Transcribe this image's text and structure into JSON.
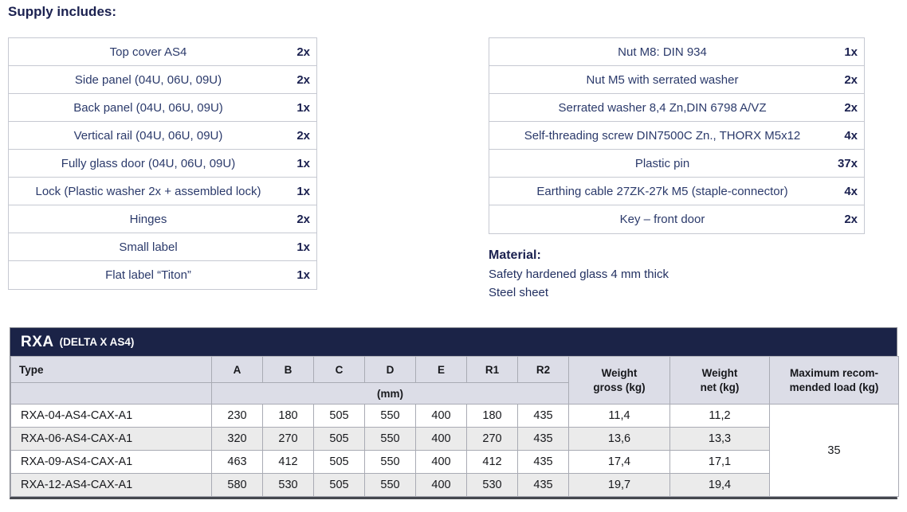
{
  "supply": {
    "heading": "Supply includes:"
  },
  "supply_left": [
    {
      "item": "Top cover AS4",
      "qty": "2x"
    },
    {
      "item": "Side panel (04U, 06U, 09U)",
      "qty": "2x"
    },
    {
      "item": "Back panel (04U, 06U, 09U)",
      "qty": "1x"
    },
    {
      "item": "Vertical rail (04U, 06U, 09U)",
      "qty": "2x"
    },
    {
      "item": "Fully glass door (04U, 06U, 09U)",
      "qty": "1x"
    },
    {
      "item": "Lock (Plastic washer 2x + assembled lock)",
      "qty": "1x"
    },
    {
      "item": "Hinges",
      "qty": "2x"
    },
    {
      "item": "Small label",
      "qty": "1x"
    },
    {
      "item": "Flat label “Titon”",
      "qty": "1x"
    }
  ],
  "supply_right": [
    {
      "item": "Nut M8: DIN 934",
      "qty": "1x"
    },
    {
      "item": "Nut M5 with serrated washer",
      "qty": "2x"
    },
    {
      "item": "Serrated washer 8,4 Zn,DIN 6798 A/VZ",
      "qty": "2x"
    },
    {
      "item": "Self-threading screw DIN7500C Zn., THORX M5x12",
      "qty": "4x"
    },
    {
      "item": "Plastic pin",
      "qty": "37x"
    },
    {
      "item": "Earthing cable 27ZK-27k M5 (staple-connector)",
      "qty": "4x"
    },
    {
      "item": "Key – front door",
      "qty": "2x"
    }
  ],
  "material": {
    "heading": "Material:",
    "lines": [
      "Safety hardened glass 4 mm thick",
      "Steel sheet"
    ]
  },
  "spec": {
    "title": "RXA",
    "subtitle": "(DELTA X AS4)",
    "col_type": "Type",
    "dim_columns": [
      "A",
      "B",
      "C",
      "D",
      "E",
      "R1",
      "R2"
    ],
    "dim_unit": "(mm)",
    "col_weight_gross": "Weight\ngross (kg)",
    "col_weight_net": "Weight\nnet (kg)",
    "col_max_load": "Maximum recom-\nmended load (kg)",
    "rows": [
      {
        "type": "RXA-04-AS4-CAX-A1",
        "dims": [
          "230",
          "180",
          "505",
          "550",
          "400",
          "180",
          "435"
        ],
        "weight_gross": "11,4",
        "weight_net": "11,2"
      },
      {
        "type": "RXA-06-AS4-CAX-A1",
        "dims": [
          "320",
          "270",
          "505",
          "550",
          "400",
          "270",
          "435"
        ],
        "weight_gross": "13,6",
        "weight_net": "13,3"
      },
      {
        "type": "RXA-09-AS4-CAX-A1",
        "dims": [
          "463",
          "412",
          "505",
          "550",
          "400",
          "412",
          "435"
        ],
        "weight_gross": "17,4",
        "weight_net": "17,1"
      },
      {
        "type": "RXA-12-AS4-CAX-A1",
        "dims": [
          "580",
          "530",
          "505",
          "550",
          "400",
          "530",
          "435"
        ],
        "weight_gross": "19,7",
        "weight_net": "19,4"
      }
    ],
    "max_load": "35"
  },
  "colors": {
    "navy_header": "#1b2347",
    "heading_text": "#1b2150",
    "body_text": "#2b3a6b",
    "table_header_bg": "#dcdde7",
    "row_stripe": "#ebebeb"
  }
}
